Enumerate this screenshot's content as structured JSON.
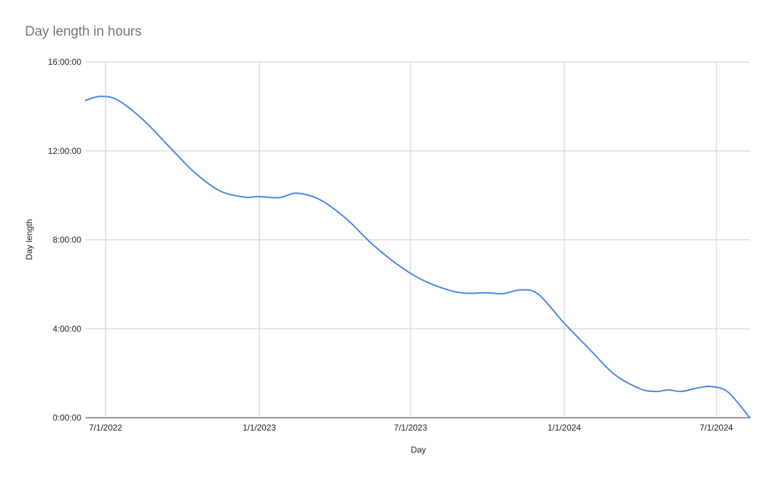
{
  "chart_data": {
    "type": "line",
    "title": "Day length in hours",
    "xlabel": "Day",
    "ylabel": "Day length",
    "x_axis": {
      "type": "date",
      "range": [
        "2022-06-07",
        "2024-08-10"
      ],
      "ticks": [
        "2022-07-01",
        "2023-01-01",
        "2023-07-01",
        "2024-01-01",
        "2024-07-01"
      ],
      "tick_labels": [
        "7/1/2022",
        "1/1/2023",
        "7/1/2023",
        "1/1/2024",
        "7/1/2024"
      ]
    },
    "y_axis": {
      "unit": "hours",
      "range": [
        0,
        16
      ],
      "ticks": [
        0,
        4,
        8,
        12,
        16
      ],
      "tick_labels": [
        "0:00:00",
        "4:00:00",
        "8:00:00",
        "12:00:00",
        "16:00:00"
      ]
    },
    "grid": true,
    "legend": "none",
    "series": [
      {
        "color": "#4a86e8",
        "points": [
          [
            "2022-06-07",
            14.27
          ],
          [
            "2022-06-24",
            14.45
          ],
          [
            "2022-07-15",
            14.3
          ],
          [
            "2022-08-15",
            13.4
          ],
          [
            "2022-09-15",
            12.2
          ],
          [
            "2022-10-15",
            11.05
          ],
          [
            "2022-11-15",
            10.2
          ],
          [
            "2022-12-15",
            9.92
          ],
          [
            "2022-12-31",
            9.95
          ],
          [
            "2023-01-25",
            9.9
          ],
          [
            "2023-02-15",
            10.1
          ],
          [
            "2023-03-15",
            9.8
          ],
          [
            "2023-04-15",
            8.95
          ],
          [
            "2023-05-15",
            7.85
          ],
          [
            "2023-06-15",
            6.9
          ],
          [
            "2023-07-15",
            6.2
          ],
          [
            "2023-08-15",
            5.75
          ],
          [
            "2023-09-05",
            5.6
          ],
          [
            "2023-10-01",
            5.62
          ],
          [
            "2023-10-20",
            5.58
          ],
          [
            "2023-11-10",
            5.75
          ],
          [
            "2023-12-01",
            5.55
          ],
          [
            "2024-01-01",
            4.25
          ],
          [
            "2024-02-01",
            3.05
          ],
          [
            "2024-03-01",
            1.95
          ],
          [
            "2024-04-01",
            1.3
          ],
          [
            "2024-04-20",
            1.18
          ],
          [
            "2024-05-05",
            1.25
          ],
          [
            "2024-05-20",
            1.18
          ],
          [
            "2024-06-10",
            1.35
          ],
          [
            "2024-06-25",
            1.4
          ],
          [
            "2024-07-15",
            1.15
          ],
          [
            "2024-08-10",
            0.0
          ]
        ]
      }
    ]
  }
}
